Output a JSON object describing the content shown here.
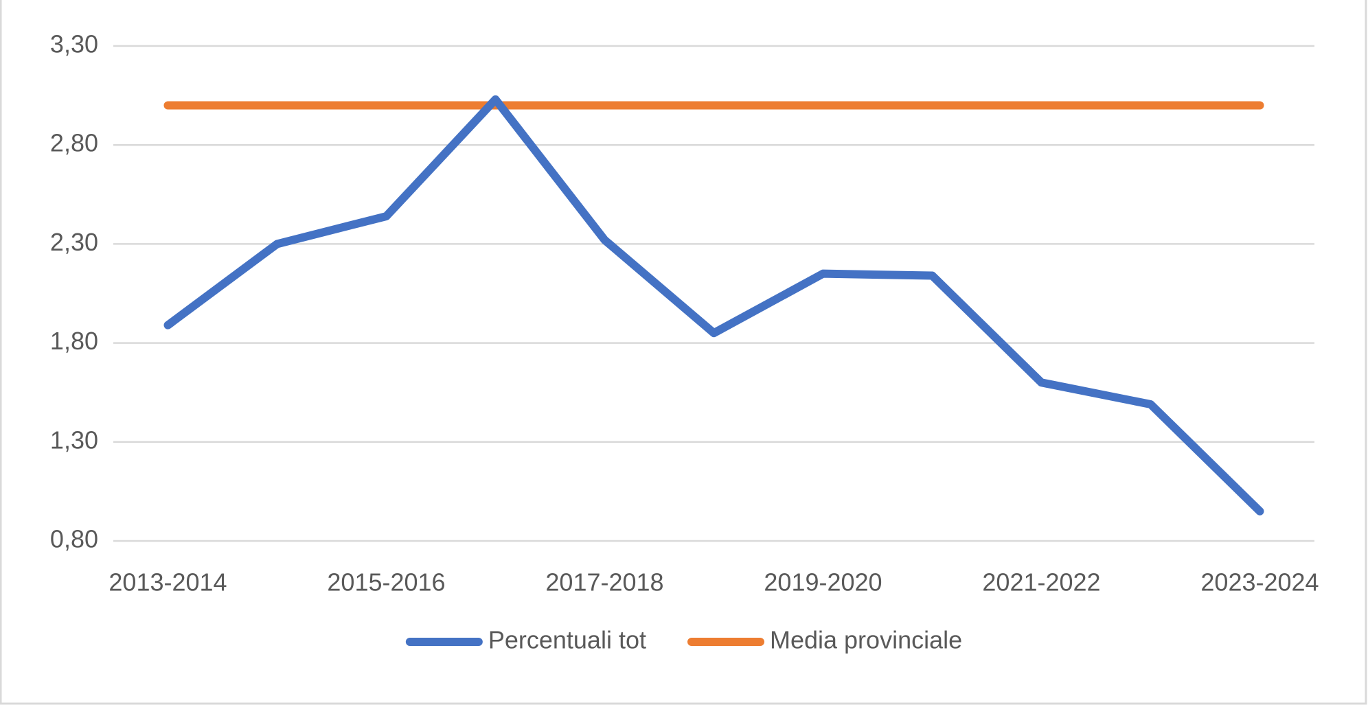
{
  "chart_data": {
    "type": "line",
    "categories": [
      "2013-2014",
      null,
      "2015-2016",
      null,
      "2017-2018",
      null,
      "2019-2020",
      null,
      "2021-2022",
      null,
      "2023-2024"
    ],
    "series": [
      {
        "name": "Percentuali tot",
        "color": "#4472c4",
        "values": [
          1.89,
          2.3,
          2.44,
          3.03,
          2.32,
          1.85,
          2.15,
          2.14,
          1.6,
          1.49,
          0.95
        ]
      },
      {
        "name": "Media provinciale",
        "color": "#ed7d31",
        "values": [
          3.0,
          3.0,
          3.0,
          3.0,
          3.0,
          3.0,
          3.0,
          3.0,
          3.0,
          3.0,
          3.0
        ]
      }
    ],
    "ylim": [
      0.8,
      3.3
    ],
    "yticks": [
      {
        "value": 0.8,
        "label": "0,80"
      },
      {
        "value": 1.3,
        "label": "1,30"
      },
      {
        "value": 1.8,
        "label": "1,80"
      },
      {
        "value": 2.3,
        "label": "2,30"
      },
      {
        "value": 2.8,
        "label": "2,80"
      },
      {
        "value": 3.3,
        "label": "3,30"
      }
    ],
    "grid": true,
    "legend": "bottom"
  }
}
